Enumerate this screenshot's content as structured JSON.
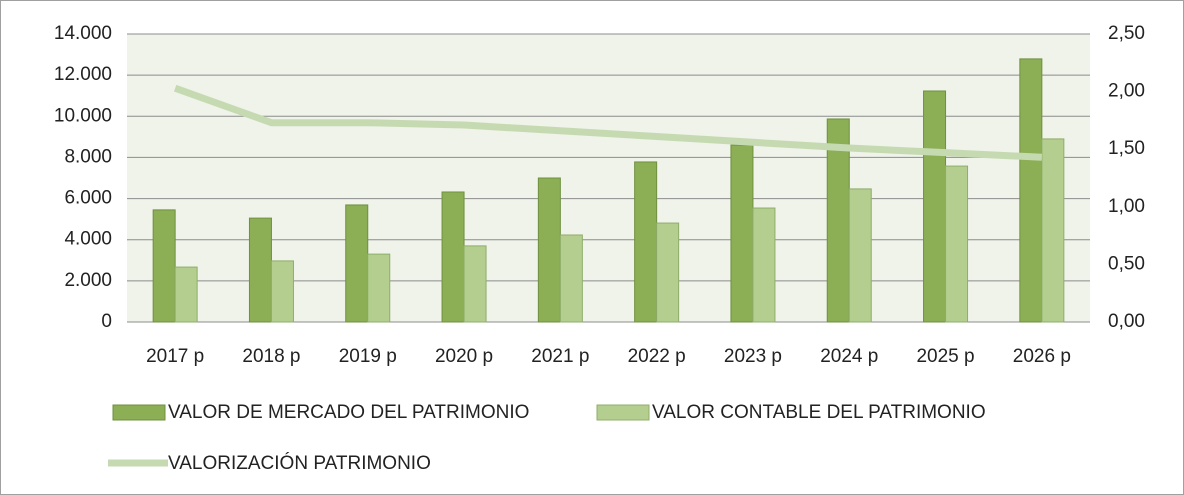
{
  "chart_data": {
    "type": "bar",
    "categories": [
      "2017 p",
      "2018 p",
      "2019 p",
      "2020 p",
      "2021 p",
      "2022 p",
      "2023 p",
      "2024 p",
      "2025 p",
      "2026 p"
    ],
    "series": [
      {
        "name": "VALOR DE MERCADO DEL PATRIMONIO",
        "type": "bar",
        "color": "#8cae55",
        "values": [
          5450,
          5050,
          5690,
          6320,
          7000,
          7780,
          8600,
          9870,
          11230,
          12790
        ]
      },
      {
        "name": "VALOR CONTABLE DEL PATRIMONIO",
        "type": "bar",
        "color": "#b3ce8e",
        "values": [
          2670,
          2970,
          3300,
          3700,
          4230,
          4810,
          5540,
          6470,
          7580,
          8900
        ]
      },
      {
        "name": "VALORIZACIÓN PATRIMONIO",
        "type": "line",
        "axis": "y2",
        "color": "#c6dab2",
        "values": [
          2.03,
          1.73,
          1.73,
          1.71,
          1.66,
          1.61,
          1.56,
          1.51,
          1.47,
          1.43
        ]
      }
    ],
    "ylim": [
      0,
      14000
    ],
    "yticks": [
      0,
      {
        "value": 2000,
        "label": "2.000"
      },
      {
        "value": 4000,
        "label": "4.000"
      },
      {
        "value": 6000,
        "label": "6.000"
      },
      {
        "value": 8000,
        "label": "8.000"
      },
      {
        "value": 10000,
        "label": "10.000"
      },
      {
        "value": 12000,
        "label": "12.000"
      },
      {
        "value": 14000,
        "label": "14.000"
      }
    ],
    "y2lim": [
      0,
      2.5
    ],
    "y2ticks": [
      {
        "value": 0,
        "label": "0,00"
      },
      {
        "value": 0.5,
        "label": "0,50"
      },
      {
        "value": 1,
        "label": "1,00"
      },
      {
        "value": 1.5,
        "label": "1,50"
      },
      {
        "value": 2,
        "label": "2,00"
      },
      {
        "value": 2.5,
        "label": "2,50"
      }
    ],
    "grid": true
  }
}
